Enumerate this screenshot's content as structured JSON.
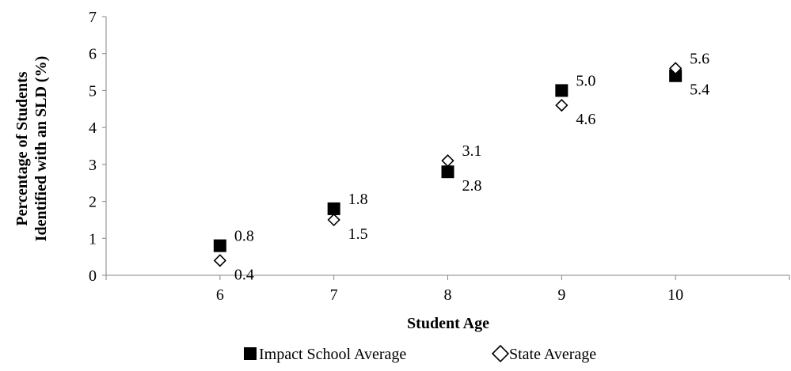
{
  "chart_data": {
    "type": "scatter",
    "title": "",
    "xlabel": "Student Age",
    "ylabel_lines": [
      "Percentage of Students",
      "Identified with an SLD (%)"
    ],
    "x": [
      6,
      7,
      8,
      9,
      10
    ],
    "x_ticks": [
      "6",
      "7",
      "8",
      "9",
      "10"
    ],
    "xlim": [
      5,
      11
    ],
    "ylim": [
      0,
      7
    ],
    "y_ticks": [
      "0",
      "1",
      "2",
      "3",
      "4",
      "5",
      "6",
      "7"
    ],
    "grid": false,
    "legend_position": "bottom",
    "series": [
      {
        "name": "Impact School Average",
        "marker": "filled-square",
        "color": "#000000",
        "values": [
          0.8,
          1.8,
          2.8,
          5.0,
          5.4
        ],
        "labels": [
          "0.8",
          "1.8",
          "2.8",
          "5.0",
          "5.4"
        ]
      },
      {
        "name": "State Average",
        "marker": "open-diamond",
        "color": "#000000",
        "values": [
          0.4,
          1.5,
          3.1,
          4.6,
          5.6
        ],
        "labels": [
          "0.4",
          "1.5",
          "3.1",
          "4.6",
          "5.6"
        ]
      }
    ]
  }
}
